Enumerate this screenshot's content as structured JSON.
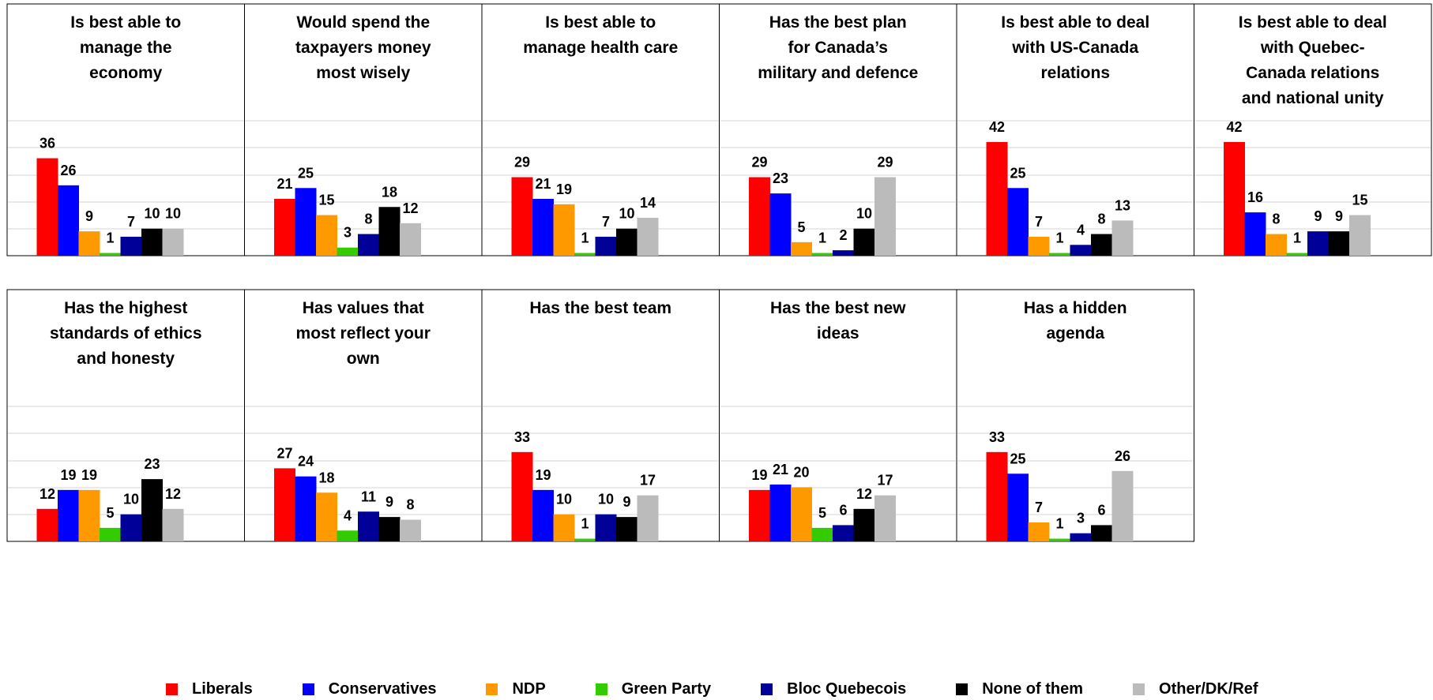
{
  "colors": {
    "Liberals": "#ff0000",
    "Conservatives": "#0000ff",
    "NDP": "#ff9900",
    "Green Party": "#33cc00",
    "Bloc Quebecois": "#000099",
    "None of them": "#000000",
    "Other/DK/Ref": "#bbbbbb"
  },
  "legend": [
    "Liberals",
    "Conservatives",
    "NDP",
    "Green Party",
    "Bloc Quebecois",
    "None of them",
    "Other/DK/Ref"
  ],
  "chart_data": [
    {
      "type": "bar",
      "title": "Is best able to manage the economy",
      "title_lines": [
        "Is best able to",
        "manage the",
        "economy"
      ],
      "categories": [
        "Liberals",
        "Conservatives",
        "NDP",
        "Green Party",
        "Bloc Quebecois",
        "None of them",
        "Other/DK/Ref"
      ],
      "values": [
        36,
        26,
        9,
        1,
        7,
        10,
        10
      ],
      "ylim": [
        0,
        50
      ],
      "grid": true
    },
    {
      "type": "bar",
      "title": "Would spend the taxpayers money most wisely",
      "title_lines": [
        "Would spend the",
        "taxpayers money",
        "most wisely"
      ],
      "categories": [
        "Liberals",
        "Conservatives",
        "NDP",
        "Green Party",
        "Bloc Quebecois",
        "None of them",
        "Other/DK/Ref"
      ],
      "values": [
        21,
        25,
        15,
        3,
        8,
        18,
        12
      ],
      "ylim": [
        0,
        50
      ],
      "grid": true
    },
    {
      "type": "bar",
      "title": "Is best able to manage health care",
      "title_lines": [
        "Is best able to",
        "manage health care"
      ],
      "categories": [
        "Liberals",
        "Conservatives",
        "NDP",
        "Green Party",
        "Bloc Quebecois",
        "None of them",
        "Other/DK/Ref"
      ],
      "values": [
        29,
        21,
        19,
        1,
        7,
        10,
        14
      ],
      "ylim": [
        0,
        50
      ],
      "grid": true
    },
    {
      "type": "bar",
      "title": "Has the best plan for Canada’s military and defence",
      "title_lines": [
        "Has the best plan",
        "for Canada’s",
        "military and defence"
      ],
      "categories": [
        "Liberals",
        "Conservatives",
        "NDP",
        "Green Party",
        "Bloc Quebecois",
        "None of them",
        "Other/DK/Ref"
      ],
      "values": [
        29,
        23,
        5,
        1,
        2,
        10,
        29
      ],
      "ylim": [
        0,
        50
      ],
      "grid": true
    },
    {
      "type": "bar",
      "title": "Is best able to deal with US-Canada relations",
      "title_lines": [
        "Is best able to deal",
        "with US-Canada",
        "relations"
      ],
      "categories": [
        "Liberals",
        "Conservatives",
        "NDP",
        "Green Party",
        "Bloc Quebecois",
        "None of them",
        "Other/DK/Ref"
      ],
      "values": [
        42,
        25,
        7,
        1,
        4,
        8,
        13
      ],
      "ylim": [
        0,
        50
      ],
      "grid": true
    },
    {
      "type": "bar",
      "title": "Is best able to deal with Quebec-Canada relations and national unity",
      "title_lines": [
        "Is best able to deal",
        "with Quebec-",
        "Canada relations",
        "and national unity"
      ],
      "categories": [
        "Liberals",
        "Conservatives",
        "NDP",
        "Green Party",
        "Bloc Quebecois",
        "None of them",
        "Other/DK/Ref"
      ],
      "values": [
        42,
        16,
        8,
        1,
        9,
        9,
        15
      ],
      "ylim": [
        0,
        50
      ],
      "grid": true
    },
    {
      "type": "bar",
      "title": "Has the highest standards of ethics and honesty",
      "title_lines": [
        "Has the highest",
        "standards of ethics",
        "and honesty"
      ],
      "categories": [
        "Liberals",
        "Conservatives",
        "NDP",
        "Green Party",
        "Bloc Quebecois",
        "None of them",
        "Other/DK/Ref"
      ],
      "values": [
        12,
        19,
        19,
        5,
        10,
        23,
        12
      ],
      "ylim": [
        0,
        50
      ],
      "grid": true
    },
    {
      "type": "bar",
      "title": "Has values that most reflect your own",
      "title_lines": [
        "Has values that",
        "most reflect your",
        "own"
      ],
      "categories": [
        "Liberals",
        "Conservatives",
        "NDP",
        "Green Party",
        "Bloc Quebecois",
        "None of them",
        "Other/DK/Ref"
      ],
      "values": [
        27,
        24,
        18,
        4,
        11,
        9,
        8
      ],
      "ylim": [
        0,
        50
      ],
      "grid": true
    },
    {
      "type": "bar",
      "title": "Has the best team",
      "title_lines": [
        "Has the best team"
      ],
      "categories": [
        "Liberals",
        "Conservatives",
        "NDP",
        "Green Party",
        "Bloc Quebecois",
        "None of them",
        "Other/DK/Ref"
      ],
      "values": [
        33,
        19,
        10,
        1,
        10,
        9,
        17
      ],
      "ylim": [
        0,
        50
      ],
      "grid": true
    },
    {
      "type": "bar",
      "title": "Has the best new ideas",
      "title_lines": [
        "Has the best new",
        "ideas"
      ],
      "categories": [
        "Liberals",
        "Conservatives",
        "NDP",
        "Green Party",
        "Bloc Quebecois",
        "None of them",
        "Other/DK/Ref"
      ],
      "values": [
        19,
        21,
        20,
        5,
        6,
        12,
        17
      ],
      "ylim": [
        0,
        50
      ],
      "grid": true
    },
    {
      "type": "bar",
      "title": "Has a hidden agenda",
      "title_lines": [
        "Has a hidden",
        "agenda"
      ],
      "categories": [
        "Liberals",
        "Conservatives",
        "NDP",
        "Green Party",
        "Bloc Quebecois",
        "None of them",
        "Other/DK/Ref"
      ],
      "values": [
        33,
        25,
        7,
        1,
        3,
        6,
        26
      ],
      "ylim": [
        0,
        50
      ],
      "grid": true
    }
  ]
}
